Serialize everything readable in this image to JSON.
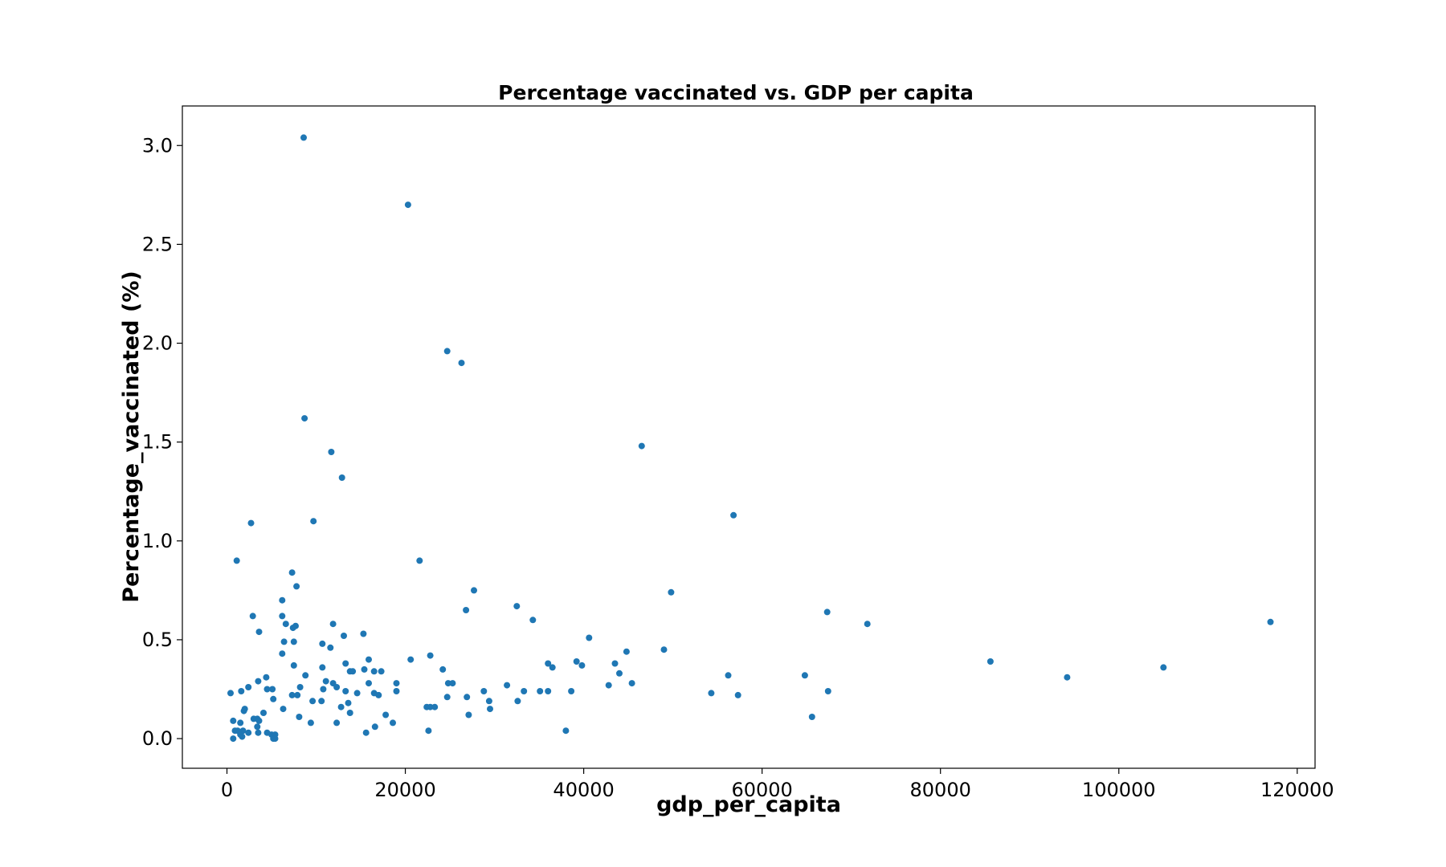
{
  "chart_data": {
    "type": "scatter",
    "title": "Percentage vaccinated vs. GDP per capita",
    "xlabel": "gdp_per_capita",
    "ylabel": "Percentage_vaccinated (%)",
    "xlim": [
      -5000,
      122000
    ],
    "ylim": [
      -0.15,
      3.2
    ],
    "xticks": [
      0,
      20000,
      40000,
      60000,
      80000,
      100000,
      120000
    ],
    "xtick_labels": [
      "0",
      "20000",
      "40000",
      "60000",
      "80000",
      "100000",
      "120000"
    ],
    "yticks": [
      0.0,
      0.5,
      1.0,
      1.5,
      2.0,
      2.5,
      3.0
    ],
    "ytick_labels": [
      "0.0",
      "0.5",
      "1.0",
      "1.5",
      "2.0",
      "2.5",
      "3.0"
    ],
    "grid": false,
    "marker_color": "#1f77b4",
    "points": [
      [
        8600,
        3.04
      ],
      [
        20300,
        2.7
      ],
      [
        24700,
        1.96
      ],
      [
        26300,
        1.9
      ],
      [
        8700,
        1.62
      ],
      [
        46500,
        1.48
      ],
      [
        11700,
        1.45
      ],
      [
        12900,
        1.32
      ],
      [
        56800,
        1.13
      ],
      [
        2700,
        1.09
      ],
      [
        9700,
        1.1
      ],
      [
        1100,
        0.9
      ],
      [
        21600,
        0.9
      ],
      [
        7300,
        0.84
      ],
      [
        7800,
        0.77
      ],
      [
        27700,
        0.75
      ],
      [
        49800,
        0.74
      ],
      [
        6200,
        0.7
      ],
      [
        32500,
        0.67
      ],
      [
        26800,
        0.65
      ],
      [
        67300,
        0.64
      ],
      [
        2900,
        0.62
      ],
      [
        6200,
        0.62
      ],
      [
        34300,
        0.6
      ],
      [
        117000,
        0.59
      ],
      [
        6600,
        0.58
      ],
      [
        11900,
        0.58
      ],
      [
        71800,
        0.58
      ],
      [
        7700,
        0.57
      ],
      [
        7400,
        0.56
      ],
      [
        3600,
        0.54
      ],
      [
        15300,
        0.53
      ],
      [
        13100,
        0.52
      ],
      [
        40600,
        0.51
      ],
      [
        7500,
        0.49
      ],
      [
        6400,
        0.49
      ],
      [
        10700,
        0.48
      ],
      [
        11600,
        0.46
      ],
      [
        49000,
        0.45
      ],
      [
        44800,
        0.44
      ],
      [
        6200,
        0.43
      ],
      [
        22800,
        0.42
      ],
      [
        20600,
        0.4
      ],
      [
        15900,
        0.4
      ],
      [
        39200,
        0.39
      ],
      [
        85600,
        0.39
      ],
      [
        13300,
        0.38
      ],
      [
        36000,
        0.38
      ],
      [
        43500,
        0.38
      ],
      [
        7500,
        0.37
      ],
      [
        39800,
        0.37
      ],
      [
        10700,
        0.36
      ],
      [
        36500,
        0.36
      ],
      [
        105000,
        0.36
      ],
      [
        15400,
        0.35
      ],
      [
        24200,
        0.35
      ],
      [
        13800,
        0.34
      ],
      [
        14100,
        0.34
      ],
      [
        16500,
        0.34
      ],
      [
        17300,
        0.34
      ],
      [
        44000,
        0.33
      ],
      [
        8800,
        0.32
      ],
      [
        56200,
        0.32
      ],
      [
        64800,
        0.32
      ],
      [
        94200,
        0.31
      ],
      [
        4400,
        0.31
      ],
      [
        3500,
        0.29
      ],
      [
        11100,
        0.29
      ],
      [
        11900,
        0.28
      ],
      [
        24800,
        0.28
      ],
      [
        25300,
        0.28
      ],
      [
        45400,
        0.28
      ],
      [
        15900,
        0.28
      ],
      [
        19000,
        0.28
      ],
      [
        42800,
        0.27
      ],
      [
        31400,
        0.27
      ],
      [
        10800,
        0.25
      ],
      [
        12300,
        0.26
      ],
      [
        8200,
        0.26
      ],
      [
        2400,
        0.26
      ],
      [
        4500,
        0.25
      ],
      [
        5100,
        0.25
      ],
      [
        28800,
        0.24
      ],
      [
        13300,
        0.24
      ],
      [
        19000,
        0.24
      ],
      [
        33300,
        0.24
      ],
      [
        35100,
        0.24
      ],
      [
        36000,
        0.24
      ],
      [
        38600,
        0.24
      ],
      [
        67400,
        0.24
      ],
      [
        1600,
        0.24
      ],
      [
        400,
        0.23
      ],
      [
        14600,
        0.23
      ],
      [
        16500,
        0.23
      ],
      [
        54300,
        0.23
      ],
      [
        57300,
        0.22
      ],
      [
        7300,
        0.22
      ],
      [
        7900,
        0.22
      ],
      [
        17000,
        0.22
      ],
      [
        24700,
        0.21
      ],
      [
        26900,
        0.21
      ],
      [
        5200,
        0.2
      ],
      [
        9600,
        0.19
      ],
      [
        10600,
        0.19
      ],
      [
        29400,
        0.19
      ],
      [
        32600,
        0.19
      ],
      [
        13600,
        0.18
      ],
      [
        12800,
        0.16
      ],
      [
        22400,
        0.16
      ],
      [
        22800,
        0.16
      ],
      [
        23300,
        0.16
      ],
      [
        29500,
        0.15
      ],
      [
        6300,
        0.15
      ],
      [
        1900,
        0.14
      ],
      [
        2000,
        0.15
      ],
      [
        4100,
        0.13
      ],
      [
        13800,
        0.13
      ],
      [
        17800,
        0.12
      ],
      [
        27100,
        0.12
      ],
      [
        65600,
        0.11
      ],
      [
        8100,
        0.11
      ],
      [
        3000,
        0.1
      ],
      [
        3400,
        0.1
      ],
      [
        3600,
        0.09
      ],
      [
        700,
        0.09
      ],
      [
        9400,
        0.08
      ],
      [
        12300,
        0.08
      ],
      [
        18600,
        0.08
      ],
      [
        1500,
        0.08
      ],
      [
        3400,
        0.06
      ],
      [
        16600,
        0.06
      ],
      [
        1200,
        0.04
      ],
      [
        900,
        0.04
      ],
      [
        1800,
        0.04
      ],
      [
        2400,
        0.03
      ],
      [
        3500,
        0.03
      ],
      [
        4500,
        0.03
      ],
      [
        5000,
        0.02
      ],
      [
        5400,
        0.02
      ],
      [
        15600,
        0.03
      ],
      [
        22600,
        0.04
      ],
      [
        38000,
        0.04
      ],
      [
        1500,
        0.02
      ],
      [
        1700,
        0.01
      ],
      [
        5200,
        0.0
      ],
      [
        5400,
        0.0
      ],
      [
        700,
        0.0
      ]
    ]
  }
}
